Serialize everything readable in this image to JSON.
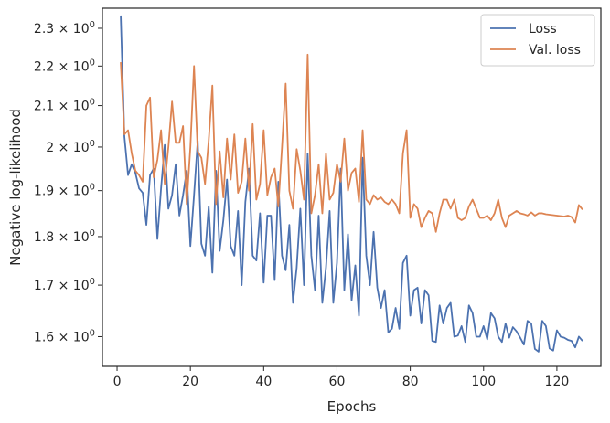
{
  "chart_data": {
    "type": "line",
    "title": "",
    "xlabel": "Epochs",
    "ylabel": "Negative log-likelihood",
    "xlim": [
      -4,
      132
    ],
    "ylim": [
      1.545,
      2.355
    ],
    "yscale": "log",
    "grid": false,
    "legend_position": "top-right",
    "x_ticks": [
      0,
      20,
      40,
      60,
      80,
      100,
      120
    ],
    "x_tick_labels": [
      "0",
      "20",
      "40",
      "60",
      "80",
      "100",
      "120"
    ],
    "y_ticks": [
      1.6,
      1.7,
      1.8,
      1.9,
      2.0,
      2.1,
      2.2,
      2.3
    ],
    "y_tick_mantissas": [
      "1.6",
      "1.7",
      "1.8",
      "1.9",
      "2",
      "2.1",
      "2.2",
      "2.3"
    ],
    "y_tick_base": "10",
    "y_tick_exponent": "0",
    "x_start": 1,
    "series": [
      {
        "name": "Loss",
        "color": "#4c72b0",
        "values": [
          2.335,
          2.025,
          1.935,
          1.96,
          1.94,
          1.905,
          1.895,
          1.825,
          1.935,
          1.95,
          1.795,
          1.905,
          2.005,
          1.86,
          1.89,
          1.96,
          1.845,
          1.89,
          1.945,
          1.78,
          1.89,
          2.015,
          1.785,
          1.76,
          1.865,
          1.725,
          1.945,
          1.77,
          1.835,
          1.925,
          1.78,
          1.76,
          1.855,
          1.7,
          1.875,
          1.95,
          1.76,
          1.75,
          1.85,
          1.705,
          1.845,
          1.845,
          1.71,
          1.92,
          1.76,
          1.73,
          1.825,
          1.665,
          1.735,
          1.86,
          1.7,
          1.985,
          1.76,
          1.69,
          1.845,
          1.665,
          1.735,
          1.855,
          1.665,
          1.745,
          1.95,
          1.69,
          1.805,
          1.67,
          1.74,
          1.64,
          1.975,
          1.76,
          1.7,
          1.81,
          1.695,
          1.655,
          1.69,
          1.608,
          1.615,
          1.655,
          1.615,
          1.745,
          1.76,
          1.64,
          1.69,
          1.695,
          1.625,
          1.69,
          1.68,
          1.592,
          1.59,
          1.66,
          1.625,
          1.655,
          1.665,
          1.6,
          1.602,
          1.62,
          1.59,
          1.66,
          1.645,
          1.6,
          1.6,
          1.62,
          1.595,
          1.645,
          1.635,
          1.6,
          1.59,
          1.625,
          1.598,
          1.618,
          1.61,
          1.598,
          1.585,
          1.63,
          1.625,
          1.577,
          1.572,
          1.63,
          1.62,
          1.578,
          1.574,
          1.612,
          1.6,
          1.598,
          1.594,
          1.592,
          1.58,
          1.6,
          1.592
        ]
      },
      {
        "name": "Val. loss",
        "color": "#dd8452",
        "values": [
          2.21,
          2.03,
          2.04,
          1.985,
          1.945,
          1.935,
          1.92,
          2.1,
          2.12,
          1.93,
          1.97,
          2.04,
          1.915,
          2.0,
          2.11,
          2.01,
          2.01,
          2.05,
          1.87,
          2.0,
          2.2,
          1.99,
          1.975,
          1.915,
          2.015,
          2.15,
          1.87,
          1.99,
          1.885,
          2.02,
          1.925,
          2.03,
          1.895,
          1.92,
          2.02,
          1.9,
          2.055,
          1.88,
          1.915,
          2.04,
          1.89,
          1.93,
          1.95,
          1.865,
          2.0,
          2.155,
          1.9,
          1.86,
          1.995,
          1.945,
          1.88,
          2.23,
          1.85,
          1.89,
          1.96,
          1.85,
          1.985,
          1.88,
          1.895,
          1.96,
          1.92,
          2.02,
          1.9,
          1.94,
          1.95,
          1.875,
          2.04,
          1.88,
          1.87,
          1.89,
          1.88,
          1.885,
          1.875,
          1.87,
          1.88,
          1.87,
          1.85,
          1.985,
          2.04,
          1.84,
          1.87,
          1.86,
          1.82,
          1.84,
          1.855,
          1.85,
          1.81,
          1.85,
          1.88,
          1.88,
          1.86,
          1.88,
          1.84,
          1.835,
          1.84,
          1.865,
          1.88,
          1.86,
          1.84,
          1.84,
          1.845,
          1.835,
          1.85,
          1.88,
          1.84,
          1.82,
          1.845,
          1.85,
          1.855,
          1.85,
          1.848,
          1.845,
          1.852,
          1.845,
          1.85,
          1.85,
          1.848,
          1.847,
          1.846,
          1.845,
          1.844,
          1.843,
          1.845,
          1.842,
          1.83,
          1.868,
          1.858
        ]
      }
    ]
  }
}
